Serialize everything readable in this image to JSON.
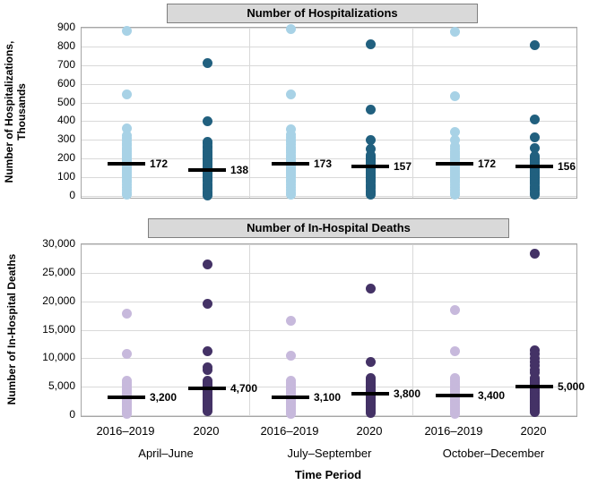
{
  "colors": {
    "hosp_2016_2019": "#a8d2e6",
    "hosp_2020": "#21607f",
    "death_2016_2019": "#c7b9dc",
    "death_2020": "#443266",
    "median_line": "#000000",
    "title_box_bg": "#d9d9d9",
    "title_box_border": "#7f7f7f",
    "gridline": "#d9d9d9",
    "plot_border": "#a6a6a6"
  },
  "xaxis": {
    "title": "Time Period",
    "series_labels": [
      "2016–2019",
      "2020",
      "2016–2019",
      "2020",
      "2016–2019",
      "2020"
    ],
    "group_labels": [
      "April–June",
      "July–September",
      "October–December"
    ]
  },
  "chart_data": [
    {
      "type": "scatter",
      "title": "Number of Hospitalizations",
      "ylabel": "Number of Hospitalizations, Thousands",
      "ylabel_lines": [
        "Number of Hospitalizations,",
        "Thousands"
      ],
      "ylim": [
        0,
        900
      ],
      "ytick_step": 100,
      "ytick_labels": [
        "0",
        "100",
        "200",
        "300",
        "400",
        "500",
        "600",
        "700",
        "800",
        "900"
      ],
      "grid": true,
      "legend": "none",
      "columns": [
        {
          "group": "April–June",
          "series": "2016–2019",
          "color": "hosp_2016_2019",
          "median": 172,
          "median_label": "172",
          "values": [
            885,
            545,
            360,
            322,
            308,
            295,
            282,
            270,
            258,
            247,
            237,
            227,
            218,
            209,
            201,
            193,
            186,
            179,
            172,
            165,
            158,
            150,
            142,
            134,
            125,
            116,
            106,
            96,
            85,
            73,
            60,
            46,
            31,
            16,
            6
          ]
        },
        {
          "group": "April–June",
          "series": "2020",
          "color": "hosp_2020",
          "median": 138,
          "median_label": "138",
          "values": [
            710,
            400,
            290,
            278,
            266,
            255,
            244,
            234,
            224,
            214,
            205,
            196,
            188,
            180,
            172,
            164,
            156,
            148,
            141,
            134,
            127,
            119,
            111,
            103,
            95,
            86,
            77,
            67,
            57,
            46,
            35,
            23,
            11,
            4
          ]
        },
        {
          "group": "July–September",
          "series": "2016–2019",
          "color": "hosp_2016_2019",
          "median": 173,
          "median_label": "173",
          "values": [
            895,
            545,
            358,
            330,
            315,
            301,
            288,
            275,
            263,
            251,
            240,
            230,
            220,
            211,
            202,
            194,
            186,
            179,
            173,
            166,
            159,
            151,
            143,
            135,
            126,
            117,
            107,
            96,
            85,
            73,
            60,
            46,
            31,
            16,
            6
          ]
        },
        {
          "group": "July–September",
          "series": "2020",
          "color": "hosp_2020",
          "median": 157,
          "median_label": "157",
          "values": [
            810,
            460,
            300,
            250,
            218,
            209,
            200,
            191,
            183,
            175,
            167,
            160,
            153,
            146,
            139,
            132,
            124,
            116,
            108,
            100,
            91,
            82,
            72,
            62,
            51,
            40,
            28,
            16,
            6
          ]
        },
        {
          "group": "October–December",
          "series": "2016–2019",
          "color": "hosp_2016_2019",
          "median": 172,
          "median_label": "172",
          "values": [
            880,
            535,
            340,
            300,
            265,
            250,
            238,
            227,
            217,
            207,
            198,
            190,
            182,
            175,
            168,
            161,
            154,
            147,
            139,
            131,
            123,
            114,
            105,
            95,
            84,
            72,
            60,
            47,
            33,
            18,
            7
          ]
        },
        {
          "group": "October–December",
          "series": "2020",
          "color": "hosp_2020",
          "median": 156,
          "median_label": "156",
          "values": [
            805,
            410,
            312,
            255,
            212,
            202,
            193,
            184,
            176,
            168,
            161,
            154,
            147,
            140,
            133,
            125,
            117,
            109,
            101,
            92,
            83,
            73,
            63,
            52,
            41,
            29,
            17,
            6
          ]
        }
      ]
    },
    {
      "type": "scatter",
      "title": "Number of In-Hospital Deaths",
      "ylabel": "Number of In-Hospital Deaths",
      "ylabel_lines": [
        "Number of In-Hospital Deaths"
      ],
      "ylim": [
        0,
        30000
      ],
      "ytick_step": 5000,
      "ytick_labels": [
        "0",
        "5,000",
        "10,000",
        "15,000",
        "20,000",
        "25,000",
        "30,000"
      ],
      "grid": true,
      "legend": "none",
      "columns": [
        {
          "group": "April–June",
          "series": "2016–2019",
          "color": "death_2016_2019",
          "median": 3200,
          "median_label": "3,200",
          "values": [
            17800,
            10800,
            6100,
            5750,
            5450,
            5150,
            4900,
            4650,
            4400,
            4200,
            4000,
            3800,
            3600,
            3400,
            3250,
            3100,
            2950,
            2800,
            2650,
            2500,
            2350,
            2200,
            2050,
            1900,
            1750,
            1600,
            1450,
            1300,
            1100,
            900,
            700,
            450,
            200
          ]
        },
        {
          "group": "April–June",
          "series": "2020",
          "color": "death_2020",
          "median": 4700,
          "median_label": "4,700",
          "values": [
            26400,
            19500,
            11200,
            8400,
            7900,
            6050,
            5800,
            5550,
            5300,
            5100,
            4900,
            4700,
            4500,
            4300,
            4100,
            3900,
            3700,
            3500,
            3300,
            3100,
            2900,
            2700,
            2500,
            2250,
            2000,
            1750,
            1500,
            1250,
            1000,
            700
          ]
        },
        {
          "group": "July–September",
          "series": "2016–2019",
          "color": "death_2016_2019",
          "median": 3100,
          "median_label": "3,100",
          "values": [
            16600,
            10400,
            6000,
            5700,
            5400,
            5150,
            4900,
            4650,
            4400,
            4200,
            4000,
            3800,
            3600,
            3400,
            3200,
            3050,
            2900,
            2750,
            2600,
            2450,
            2300,
            2150,
            2000,
            1850,
            1700,
            1500,
            1300,
            1100,
            900,
            650,
            400,
            200
          ]
        },
        {
          "group": "July–September",
          "series": "2020",
          "color": "death_2020",
          "median": 3800,
          "median_label": "3,800",
          "values": [
            22200,
            9400,
            6450,
            6150,
            5850,
            5600,
            5350,
            5100,
            4900,
            4700,
            4500,
            4300,
            4100,
            3900,
            3700,
            3500,
            3300,
            3100,
            2900,
            2700,
            2500,
            2300,
            2100,
            1900,
            1700,
            1450,
            1200,
            950,
            700,
            450
          ]
        },
        {
          "group": "October–December",
          "series": "2016–2019",
          "color": "death_2016_2019",
          "median": 3400,
          "median_label": "3,400",
          "values": [
            18500,
            11200,
            6500,
            6150,
            5850,
            5550,
            5300,
            5050,
            4800,
            4600,
            4400,
            4200,
            4000,
            3800,
            3600,
            3450,
            3300,
            3150,
            3000,
            2850,
            2700,
            2550,
            2400,
            2200,
            2000,
            1800,
            1600,
            1400,
            1150,
            900,
            650,
            400,
            200
          ]
        },
        {
          "group": "October–December",
          "series": "2020",
          "color": "death_2020",
          "median": 5000,
          "median_label": "5,000",
          "values": [
            28300,
            11400,
            10700,
            10000,
            9400,
            8700,
            8000,
            7400,
            6450,
            6200,
            5950,
            5700,
            5450,
            5250,
            5050,
            4850,
            4650,
            4450,
            4250,
            4050,
            3850,
            3650,
            3450,
            3250,
            3000,
            2750,
            2500,
            2250,
            2000,
            1700,
            1400,
            1100,
            800,
            500
          ]
        }
      ]
    }
  ]
}
